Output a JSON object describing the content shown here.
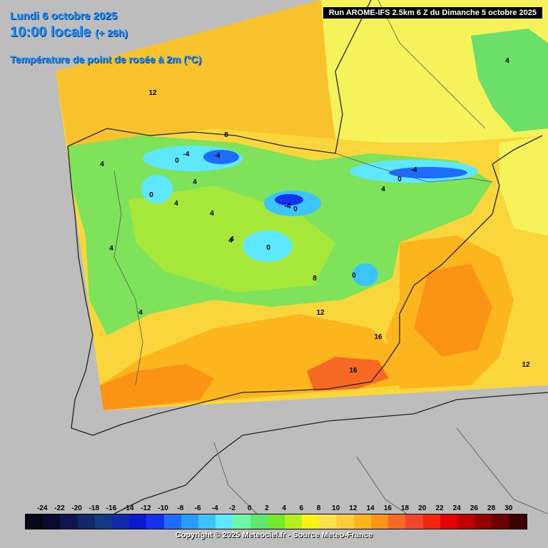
{
  "header": {
    "date": "Lundi 6 octobre 2025",
    "time": "10:00 locale",
    "lead": "(+ 26h)",
    "parameter": "Température de point de rosée à 2m (°C)"
  },
  "run_info": "Run AROME-IFS 2.5km 6 Z du Dimanche 5 octobre 2025",
  "copyright": "Copyright © 2025 Meteociel.fr - Source Meteo-France",
  "legend": {
    "values": [
      "-24",
      "-22",
      "-20",
      "-18",
      "-16",
      "-14",
      "-12",
      "-10",
      "-8",
      "-6",
      "-4",
      "-2",
      "0",
      "2",
      "4",
      "6",
      "8",
      "10",
      "12",
      "14",
      "16",
      "18",
      "20",
      "22",
      "24",
      "26",
      "28",
      "30"
    ],
    "colors": [
      "#070717",
      "#0b0b2e",
      "#0e1450",
      "#102868",
      "#123a84",
      "#0e2aa6",
      "#0a19cc",
      "#1432ee",
      "#1e6cff",
      "#2a9cff",
      "#3cc4ff",
      "#5ee8ff",
      "#6ff5a6",
      "#5ee86e",
      "#74ea2e",
      "#b5f01a",
      "#f5f514",
      "#fae14c",
      "#fccd3c",
      "#fcb51c",
      "#fb9414",
      "#f86a24",
      "#f4462c",
      "#f3250c",
      "#e80000",
      "#c00000",
      "#920000",
      "#6a0000",
      "#3c0000"
    ]
  },
  "map_labels": [
    {
      "text": "12"
    },
    {
      "text": "8"
    },
    {
      "text": "4"
    },
    {
      "text": "-4"
    },
    {
      "text": "-4"
    },
    {
      "text": "0"
    },
    {
      "text": "4"
    },
    {
      "text": "0"
    },
    {
      "text": "4"
    },
    {
      "text": "4"
    },
    {
      "text": "-4"
    },
    {
      "text": "0"
    },
    {
      "text": "4"
    },
    {
      "text": "4"
    },
    {
      "text": "0"
    },
    {
      "text": "0"
    },
    {
      "text": "4"
    },
    {
      "text": "0"
    },
    {
      "text": "8"
    },
    {
      "text": "4"
    },
    {
      "text": "12"
    },
    {
      "text": "16"
    },
    {
      "text": "16"
    },
    {
      "text": "12"
    },
    {
      "text": "4"
    },
    {
      "text": "-4"
    },
    {
      "text": "4"
    }
  ],
  "colors": {
    "background": "#bdbdbd",
    "title": "#1e90ff"
  }
}
